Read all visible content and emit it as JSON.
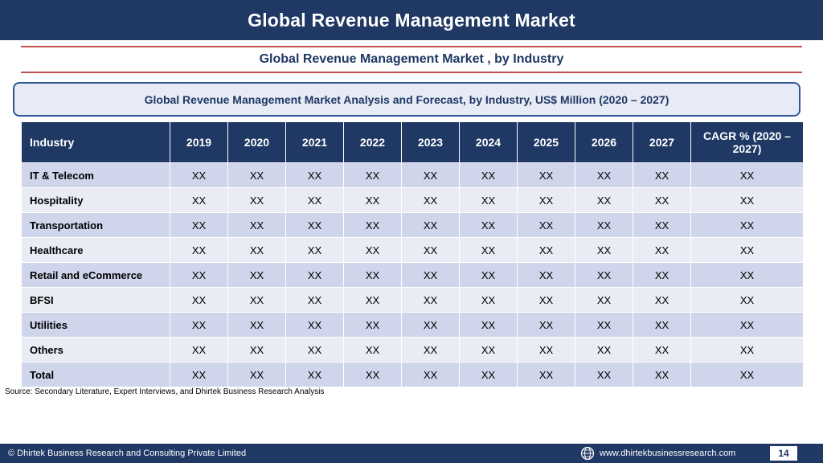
{
  "header": {
    "title": "Global Revenue Management Market"
  },
  "subtitle": "Global Revenue Management Market , by Industry",
  "banner": "Global Revenue Management Market  Analysis and Forecast, by Industry, US$ Million (2020 – 2027)",
  "table": {
    "columns": [
      "Industry",
      "2019",
      "2020",
      "2021",
      "2022",
      "2023",
      "2024",
      "2025",
      "2026",
      "2027",
      "CAGR % (2020 – 2027)"
    ],
    "rows": [
      {
        "label": "IT & Telecom",
        "values": [
          "XX",
          "XX",
          "XX",
          "XX",
          "XX",
          "XX",
          "XX",
          "XX",
          "XX",
          "XX"
        ]
      },
      {
        "label": "Hospitality",
        "values": [
          "XX",
          "XX",
          "XX",
          "XX",
          "XX",
          "XX",
          "XX",
          "XX",
          "XX",
          "XX"
        ]
      },
      {
        "label": "Transportation",
        "values": [
          "XX",
          "XX",
          "XX",
          "XX",
          "XX",
          "XX",
          "XX",
          "XX",
          "XX",
          "XX"
        ]
      },
      {
        "label": "Healthcare",
        "values": [
          "XX",
          "XX",
          "XX",
          "XX",
          "XX",
          "XX",
          "XX",
          "XX",
          "XX",
          "XX"
        ]
      },
      {
        "label": "Retail and eCommerce",
        "values": [
          "XX",
          "XX",
          "XX",
          "XX",
          "XX",
          "XX",
          "XX",
          "XX",
          "XX",
          "XX"
        ]
      },
      {
        "label": "BFSI",
        "values": [
          "XX",
          "XX",
          "XX",
          "XX",
          "XX",
          "XX",
          "XX",
          "XX",
          "XX",
          "XX"
        ]
      },
      {
        "label": "Utilities",
        "values": [
          "XX",
          "XX",
          "XX",
          "XX",
          "XX",
          "XX",
          "XX",
          "XX",
          "XX",
          "XX"
        ]
      },
      {
        "label": "Others",
        "values": [
          "XX",
          "XX",
          "XX",
          "XX",
          "XX",
          "XX",
          "XX",
          "XX",
          "XX",
          "XX"
        ]
      },
      {
        "label": "Total",
        "values": [
          "XX",
          "XX",
          "XX",
          "XX",
          "XX",
          "XX",
          "XX",
          "XX",
          "XX",
          "XX"
        ]
      }
    ]
  },
  "source": "Source: Secondary Literature, Expert Interviews, and Dhirtek Business Research Analysis",
  "footer": {
    "copyright": "© Dhirtek Business Research and Consulting Private Limited",
    "website": "www.dhirtekbusinessresearch.com",
    "page": "14",
    "icon": "globe-icon"
  },
  "colors": {
    "primary": "#1f3864",
    "accent_rule": "#c0504d",
    "row_odd": "#cfd5ea",
    "row_even": "#e9ebf5"
  }
}
